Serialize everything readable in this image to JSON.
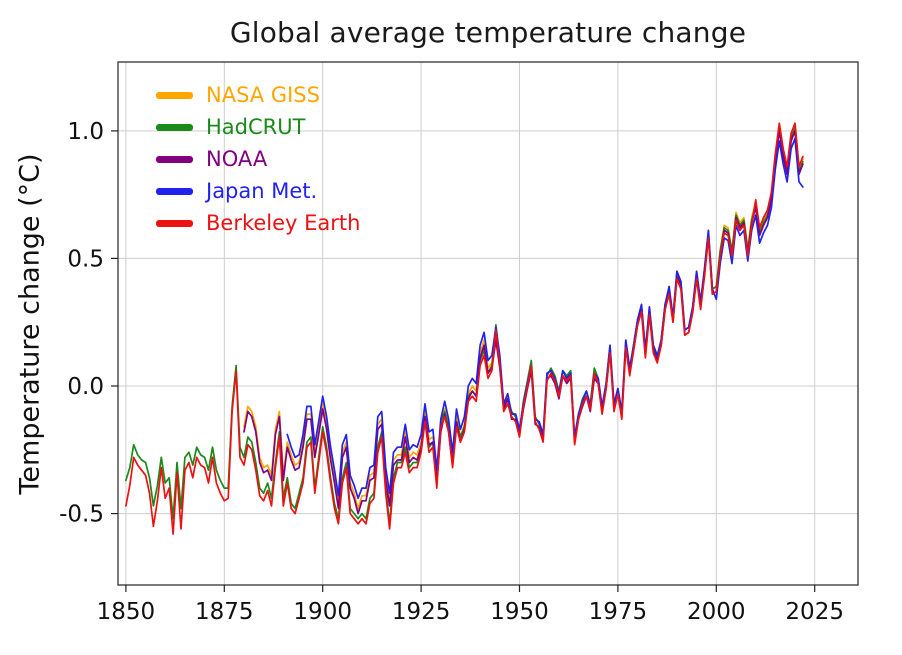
{
  "chart_data": {
    "type": "line",
    "title": "Global average temperature change",
    "xlabel": "",
    "ylabel": "Temperature change (°C)",
    "xlim": [
      1848,
      2036
    ],
    "ylim": [
      -0.78,
      1.27
    ],
    "x_ticks": [
      1850,
      1875,
      1900,
      1925,
      1950,
      1975,
      2000,
      2025
    ],
    "y_ticks": [
      -0.5,
      0.0,
      0.5,
      1.0
    ],
    "grid": true,
    "legend_position": "top-left",
    "series": [
      {
        "name": "NASA GISS",
        "color": "#FFA500",
        "start_year": 1880,
        "values": [
          -0.16,
          -0.08,
          -0.1,
          -0.16,
          -0.28,
          -0.32,
          -0.31,
          -0.35,
          -0.17,
          -0.1,
          -0.35,
          -0.22,
          -0.27,
          -0.31,
          -0.3,
          -0.22,
          -0.11,
          -0.11,
          -0.26,
          -0.17,
          -0.07,
          -0.15,
          -0.27,
          -0.36,
          -0.46,
          -0.26,
          -0.22,
          -0.38,
          -0.42,
          -0.48,
          -0.43,
          -0.43,
          -0.35,
          -0.34,
          -0.15,
          -0.13,
          -0.35,
          -0.45,
          -0.29,
          -0.27,
          -0.27,
          -0.18,
          -0.28,
          -0.26,
          -0.27,
          -0.22,
          -0.1,
          -0.21,
          -0.2,
          -0.36,
          -0.16,
          -0.09,
          -0.16,
          -0.29,
          -0.12,
          -0.2,
          -0.15,
          -0.03,
          0.0,
          -0.02,
          0.13,
          0.18,
          0.07,
          0.09,
          0.2,
          0.09,
          -0.07,
          -0.03,
          -0.11,
          -0.11,
          -0.17,
          -0.07,
          0.01,
          0.08,
          -0.13,
          -0.14,
          -0.19,
          0.05,
          0.06,
          0.03,
          -0.03,
          0.06,
          0.03,
          0.05,
          -0.2,
          -0.11,
          -0.06,
          -0.02,
          -0.08,
          0.05,
          0.03,
          -0.08,
          0.01,
          0.16,
          -0.07,
          -0.01,
          -0.1,
          0.18,
          0.07,
          0.16,
          0.26,
          0.32,
          0.14,
          0.31,
          0.16,
          0.12,
          0.18,
          0.32,
          0.39,
          0.27,
          0.45,
          0.41,
          0.22,
          0.23,
          0.31,
          0.45,
          0.33,
          0.46,
          0.61,
          0.38,
          0.39,
          0.53,
          0.63,
          0.62,
          0.53,
          0.68,
          0.64,
          0.66,
          0.54,
          0.66,
          0.72,
          0.61,
          0.65,
          0.68,
          0.75,
          0.9,
          1.01,
          0.92,
          0.85,
          0.98,
          1.02,
          0.85,
          0.89
        ]
      },
      {
        "name": "HadCRUT",
        "color": "#1B8A1B",
        "start_year": 1850,
        "values": [
          -0.37,
          -0.32,
          -0.23,
          -0.27,
          -0.29,
          -0.3,
          -0.36,
          -0.47,
          -0.39,
          -0.28,
          -0.38,
          -0.36,
          -0.52,
          -0.3,
          -0.48,
          -0.28,
          -0.26,
          -0.31,
          -0.24,
          -0.27,
          -0.28,
          -0.33,
          -0.24,
          -0.33,
          -0.37,
          -0.4,
          -0.4,
          -0.08,
          0.08,
          -0.24,
          -0.28,
          -0.2,
          -0.22,
          -0.3,
          -0.4,
          -0.42,
          -0.38,
          -0.44,
          -0.3,
          -0.18,
          -0.44,
          -0.36,
          -0.46,
          -0.48,
          -0.42,
          -0.36,
          -0.22,
          -0.2,
          -0.4,
          -0.28,
          -0.16,
          -0.24,
          -0.36,
          -0.46,
          -0.52,
          -0.36,
          -0.3,
          -0.48,
          -0.5,
          -0.52,
          -0.5,
          -0.52,
          -0.44,
          -0.42,
          -0.24,
          -0.18,
          -0.4,
          -0.54,
          -0.36,
          -0.3,
          -0.3,
          -0.24,
          -0.32,
          -0.3,
          -0.3,
          -0.24,
          -0.12,
          -0.24,
          -0.22,
          -0.38,
          -0.14,
          -0.1,
          -0.16,
          -0.3,
          -0.14,
          -0.2,
          -0.16,
          -0.04,
          -0.02,
          -0.04,
          0.1,
          0.14,
          0.05,
          0.08,
          0.24,
          0.1,
          -0.08,
          -0.05,
          -0.1,
          -0.12,
          -0.18,
          -0.06,
          0.02,
          0.1,
          -0.12,
          -0.15,
          -0.2,
          0.04,
          0.07,
          0.04,
          -0.02,
          0.06,
          0.04,
          0.06,
          -0.21,
          -0.11,
          -0.05,
          -0.02,
          -0.07,
          0.07,
          0.03,
          -0.09,
          0.01,
          0.15,
          -0.08,
          -0.01,
          -0.11,
          0.17,
          0.06,
          0.16,
          0.26,
          0.31,
          0.13,
          0.3,
          0.15,
          0.11,
          0.18,
          0.32,
          0.38,
          0.27,
          0.44,
          0.4,
          0.22,
          0.23,
          0.31,
          0.44,
          0.32,
          0.45,
          0.6,
          0.38,
          0.39,
          0.53,
          0.62,
          0.61,
          0.53,
          0.67,
          0.63,
          0.65,
          0.53,
          0.65,
          0.71,
          0.6,
          0.64,
          0.67,
          0.74,
          0.89,
          1.01,
          0.91,
          0.84,
          0.97,
          1.01,
          0.84,
          0.88
        ]
      },
      {
        "name": "NOAA",
        "color": "#800080",
        "start_year": 1880,
        "values": [
          -0.18,
          -0.1,
          -0.12,
          -0.18,
          -0.3,
          -0.34,
          -0.33,
          -0.37,
          -0.19,
          -0.12,
          -0.37,
          -0.24,
          -0.29,
          -0.33,
          -0.32,
          -0.24,
          -0.13,
          -0.13,
          -0.28,
          -0.19,
          -0.09,
          -0.17,
          -0.29,
          -0.38,
          -0.48,
          -0.28,
          -0.24,
          -0.4,
          -0.44,
          -0.5,
          -0.45,
          -0.45,
          -0.37,
          -0.36,
          -0.17,
          -0.15,
          -0.37,
          -0.47,
          -0.31,
          -0.29,
          -0.29,
          -0.2,
          -0.3,
          -0.28,
          -0.29,
          -0.24,
          -0.12,
          -0.23,
          -0.22,
          -0.38,
          -0.18,
          -0.11,
          -0.18,
          -0.31,
          -0.14,
          -0.22,
          -0.17,
          -0.05,
          -0.02,
          -0.04,
          0.11,
          0.16,
          0.05,
          0.07,
          0.18,
          0.07,
          -0.09,
          -0.05,
          -0.13,
          -0.13,
          -0.19,
          -0.09,
          -0.01,
          0.06,
          -0.15,
          -0.16,
          -0.21,
          0.03,
          0.04,
          0.01,
          -0.05,
          0.04,
          0.01,
          0.03,
          -0.22,
          -0.13,
          -0.08,
          -0.04,
          -0.1,
          0.03,
          0.01,
          -0.1,
          -0.01,
          0.14,
          -0.09,
          -0.03,
          -0.12,
          0.16,
          0.05,
          0.14,
          0.24,
          0.3,
          0.12,
          0.29,
          0.14,
          0.1,
          0.16,
          0.3,
          0.37,
          0.25,
          0.43,
          0.39,
          0.2,
          0.21,
          0.29,
          0.43,
          0.31,
          0.44,
          0.59,
          0.36,
          0.37,
          0.51,
          0.61,
          0.6,
          0.51,
          0.66,
          0.62,
          0.64,
          0.52,
          0.64,
          0.7,
          0.59,
          0.63,
          0.66,
          0.73,
          0.88,
          1.0,
          0.9,
          0.83,
          0.96,
          1.0,
          0.83,
          0.87
        ]
      },
      {
        "name": "Japan Met.",
        "color": "#2222EE",
        "start_year": 1891,
        "values": [
          -0.19,
          -0.24,
          -0.28,
          -0.27,
          -0.19,
          -0.08,
          -0.08,
          -0.23,
          -0.14,
          -0.04,
          -0.12,
          -0.24,
          -0.33,
          -0.43,
          -0.23,
          -0.19,
          -0.35,
          -0.39,
          -0.44,
          -0.4,
          -0.4,
          -0.32,
          -0.31,
          -0.12,
          -0.1,
          -0.32,
          -0.42,
          -0.26,
          -0.24,
          -0.24,
          -0.15,
          -0.25,
          -0.23,
          -0.24,
          -0.19,
          -0.07,
          -0.18,
          -0.17,
          -0.33,
          -0.13,
          -0.06,
          -0.13,
          -0.26,
          -0.09,
          -0.17,
          -0.12,
          0.0,
          0.03,
          0.01,
          0.16,
          0.21,
          0.1,
          0.12,
          0.23,
          0.12,
          -0.07,
          -0.03,
          -0.11,
          -0.11,
          -0.17,
          -0.07,
          0.01,
          0.08,
          -0.13,
          -0.14,
          -0.19,
          0.05,
          0.06,
          0.03,
          -0.03,
          0.06,
          0.03,
          0.05,
          -0.2,
          -0.11,
          -0.06,
          -0.02,
          -0.08,
          0.05,
          0.03,
          -0.08,
          0.01,
          0.16,
          -0.07,
          -0.01,
          -0.1,
          0.18,
          0.07,
          0.16,
          0.26,
          0.32,
          0.14,
          0.31,
          0.16,
          0.12,
          0.18,
          0.32,
          0.39,
          0.27,
          0.45,
          0.41,
          0.22,
          0.23,
          0.31,
          0.45,
          0.33,
          0.46,
          0.61,
          0.38,
          0.34,
          0.48,
          0.58,
          0.57,
          0.48,
          0.63,
          0.59,
          0.61,
          0.49,
          0.61,
          0.67,
          0.56,
          0.6,
          0.63,
          0.7,
          0.85,
          0.96,
          0.87,
          0.8,
          0.93,
          0.97,
          0.8,
          0.78
        ]
      },
      {
        "name": "Berkeley Earth",
        "color": "#EE1111",
        "start_year": 1850,
        "values": [
          -0.47,
          -0.39,
          -0.28,
          -0.31,
          -0.33,
          -0.35,
          -0.42,
          -0.55,
          -0.45,
          -0.32,
          -0.44,
          -0.4,
          -0.58,
          -0.34,
          -0.56,
          -0.33,
          -0.3,
          -0.36,
          -0.28,
          -0.31,
          -0.32,
          -0.38,
          -0.28,
          -0.38,
          -0.42,
          -0.45,
          -0.44,
          -0.1,
          0.06,
          -0.28,
          -0.31,
          -0.23,
          -0.25,
          -0.33,
          -0.43,
          -0.45,
          -0.41,
          -0.47,
          -0.32,
          -0.2,
          -0.47,
          -0.38,
          -0.48,
          -0.5,
          -0.44,
          -0.38,
          -0.24,
          -0.22,
          -0.42,
          -0.3,
          -0.18,
          -0.26,
          -0.38,
          -0.48,
          -0.54,
          -0.38,
          -0.32,
          -0.5,
          -0.52,
          -0.54,
          -0.52,
          -0.54,
          -0.46,
          -0.44,
          -0.26,
          -0.2,
          -0.42,
          -0.56,
          -0.38,
          -0.32,
          -0.32,
          -0.26,
          -0.34,
          -0.32,
          -0.32,
          -0.26,
          -0.14,
          -0.26,
          -0.24,
          -0.4,
          -0.16,
          -0.12,
          -0.18,
          -0.32,
          -0.16,
          -0.22,
          -0.18,
          -0.06,
          -0.04,
          -0.06,
          0.08,
          0.12,
          0.03,
          0.06,
          0.22,
          0.08,
          -0.1,
          -0.07,
          -0.12,
          -0.14,
          -0.2,
          -0.08,
          0.0,
          0.08,
          -0.14,
          -0.17,
          -0.22,
          0.02,
          0.05,
          0.02,
          -0.04,
          0.04,
          0.02,
          0.04,
          -0.23,
          -0.13,
          -0.07,
          -0.04,
          -0.09,
          0.05,
          0.01,
          -0.11,
          -0.01,
          0.13,
          -0.1,
          -0.03,
          -0.13,
          0.15,
          0.04,
          0.14,
          0.24,
          0.29,
          0.11,
          0.28,
          0.13,
          0.09,
          0.16,
          0.3,
          0.36,
          0.25,
          0.42,
          0.38,
          0.2,
          0.21,
          0.29,
          0.42,
          0.3,
          0.43,
          0.58,
          0.36,
          0.37,
          0.51,
          0.6,
          0.59,
          0.51,
          0.65,
          0.61,
          0.63,
          0.51,
          0.63,
          0.73,
          0.62,
          0.66,
          0.69,
          0.76,
          0.91,
          1.03,
          0.93,
          0.86,
          0.99,
          1.03,
          0.86,
          0.9
        ]
      }
    ],
    "style": {
      "grid_color": "#cdcdcd",
      "spine_color": "#222222",
      "tick_label_color": "#111111",
      "title_color": "#1a1a1a",
      "line_width": 1.7
    }
  }
}
